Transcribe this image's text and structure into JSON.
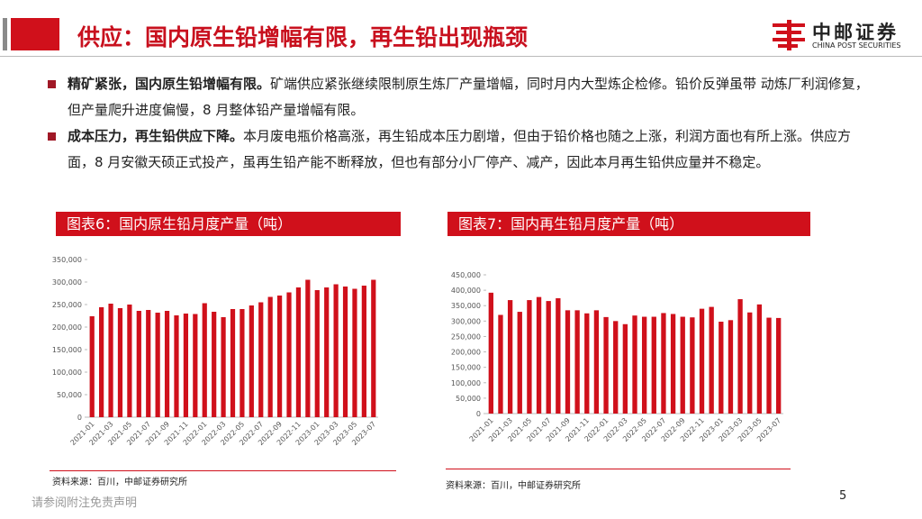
{
  "header": {
    "title": "供应：国内原生铅增幅有限，再生铅出现瓶颈",
    "logo_cn": "中邮证券",
    "logo_en": "CHINA POST SECURITIES"
  },
  "bullets": [
    {
      "bold": "精矿紧张，国内原生铅增幅有限。",
      "text": "矿端供应紧张继续限制原生炼厂产量增幅，同时月内大型炼企检修。铅价反弹虽带 动炼厂利润修复，但产量爬升进度偏慢，8 月整体铅产量增幅有限。"
    },
    {
      "bold": "成本压力，再生铅供应下降。",
      "text": "本月废电瓶价格高涨，再生铅成本压力剧增，但由于铅价格也随之上涨，利润方面也有所上涨。供应方面，8 月安徽天硕正式投产，虽再生铅产能不断释放，但也有部分小厂停产、减产，因此本月再生铅供应量并不稳定。"
    }
  ],
  "chart_data": [
    {
      "type": "bar",
      "title": "图表6：国内原生铅月度产量（吨）",
      "source": "资料来源：百川，中邮证券研究所",
      "color": "#d0101b",
      "categories": [
        "2021-01",
        null,
        "2021-03",
        null,
        "2021-05",
        null,
        "2021-07",
        null,
        "2021-09",
        null,
        "2021-11",
        null,
        "2022-01",
        null,
        "2022-03",
        null,
        "2022-05",
        null,
        "2022-07",
        null,
        "2022-09",
        null,
        "2022-11",
        null,
        "2023-01",
        null,
        "2023-03",
        null,
        "2023-05",
        null,
        "2023-07"
      ],
      "values": [
        224000,
        244000,
        252000,
        242000,
        250000,
        236000,
        238000,
        232000,
        236000,
        226000,
        230000,
        229000,
        253000,
        234000,
        222000,
        240000,
        240000,
        248000,
        255000,
        267000,
        270000,
        277000,
        288000,
        305000,
        282000,
        288000,
        295000,
        290000,
        285000,
        292000,
        305000
      ],
      "ylim": [
        0,
        350000
      ],
      "yticks": [
        0,
        {
          "value": 50000,
          "label": "50,000"
        },
        {
          "value": 100000,
          "label": "100,000"
        },
        {
          "value": 150000,
          "label": "150,000"
        },
        {
          "value": 200000,
          "label": "200,000"
        },
        {
          "value": 250000,
          "label": "250,000"
        },
        {
          "value": 300000,
          "label": "300,000"
        },
        {
          "value": 350000,
          "label": "350,000"
        }
      ]
    },
    {
      "type": "bar",
      "title": "图表7：国内再生铅月度产量（吨）",
      "source": "资料来源：百川，中邮证券研究所",
      "color": "#d0101b",
      "categories": [
        "2021-01",
        null,
        "2021-03",
        null,
        "2021-05",
        null,
        "2021-07",
        null,
        "2021-09",
        null,
        "2021-11",
        null,
        "2022-01",
        null,
        "2022-03",
        null,
        "2022-05",
        null,
        "2022-07",
        null,
        "2022-09",
        null,
        "2022-11",
        null,
        "2023-01",
        null,
        "2023-03",
        null,
        "2023-05",
        null,
        "2023-07"
      ],
      "values": [
        392000,
        320000,
        368000,
        330000,
        368000,
        378000,
        365000,
        374000,
        335000,
        335000,
        325000,
        335000,
        313000,
        300000,
        290000,
        318000,
        314000,
        314000,
        326000,
        323000,
        314000,
        312000,
        340000,
        346000,
        298000,
        303000,
        371000,
        328000,
        354000,
        311000,
        310000
      ],
      "ylim": [
        0,
        450000
      ],
      "yticks": [
        0,
        {
          "value": 50000,
          "label": "50,000"
        },
        {
          "value": 100000,
          "label": "100,000"
        },
        {
          "value": 150000,
          "label": "150,000"
        },
        {
          "value": 200000,
          "label": "200,000"
        },
        {
          "value": 250000,
          "label": "250,000"
        },
        {
          "value": 300000,
          "label": "300,000"
        },
        {
          "value": 350000,
          "label": "350,000"
        },
        {
          "value": 400000,
          "label": "400,000"
        },
        {
          "value": 450000,
          "label": "450,000"
        }
      ]
    }
  ],
  "footer": {
    "disclaimer": "请参阅附注免责声明",
    "page": "5"
  }
}
